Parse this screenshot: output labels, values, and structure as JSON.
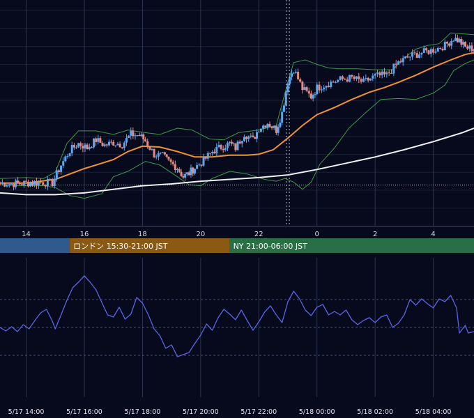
{
  "colors": {
    "background": "#060a1c",
    "grid": "#2b3350",
    "candle_up": "#5aa6f0",
    "candle_down": "#e88a82",
    "sma_short": "#f2922e",
    "sma_long": "#f1f1f1",
    "bollinger": "#3c9a4a",
    "oscillator": "#5a66e6",
    "session_tokyo": "#2f5a8e",
    "session_london": "#8a5a14",
    "session_ny": "#2a6e46"
  },
  "sessions": [
    {
      "label": "",
      "color": "#2f5a8e"
    },
    {
      "label": "ロンドン 15:30-21:00 JST",
      "color": "#8a5a14"
    },
    {
      "label": "NY 21:00-06:00 JST",
      "color": "#2a6e46"
    }
  ],
  "chart_data": [
    {
      "type": "candlestick",
      "x_ticks": [
        "14",
        "16",
        "18",
        "20",
        "22",
        "0",
        "2",
        "4"
      ],
      "x_tick_hours": [
        14,
        16,
        18,
        20,
        22,
        24,
        26,
        28
      ],
      "x_range_hours": [
        13.1,
        29.4
      ],
      "ylim": [
        0,
        100
      ],
      "grid": true,
      "series": [
        {
          "name": "",
          "kind": "candles",
          "color_up": "#5aa6f0",
          "color_down": "#e88a82",
          "close": [
            [
              13.1,
              4.0
            ],
            [
              13.5,
              3.5
            ],
            [
              14.0,
              4.0
            ],
            [
              14.5,
              4.5
            ],
            [
              14.9,
              4.0
            ],
            [
              15.2,
              14.0
            ],
            [
              15.5,
              22.0
            ],
            [
              15.8,
              26.0
            ],
            [
              16.1,
              23.5
            ],
            [
              16.4,
              28.0
            ],
            [
              16.7,
              25.0
            ],
            [
              17.0,
              26.5
            ],
            [
              17.3,
              25.5
            ],
            [
              17.6,
              31.0
            ],
            [
              17.9,
              30.5
            ],
            [
              18.1,
              27.5
            ],
            [
              18.4,
              20.0
            ],
            [
              18.7,
              19.0
            ],
            [
              18.9,
              16.0
            ],
            [
              19.2,
              12.5
            ],
            [
              19.4,
              7.5
            ],
            [
              19.6,
              9.5
            ],
            [
              19.8,
              12.5
            ],
            [
              20.1,
              16.5
            ],
            [
              20.4,
              21.5
            ],
            [
              20.7,
              24.0
            ],
            [
              21.0,
              26.0
            ],
            [
              21.2,
              23.5
            ],
            [
              21.5,
              31.5
            ],
            [
              21.8,
              28.0
            ],
            [
              22.0,
              34.5
            ],
            [
              22.3,
              37.5
            ],
            [
              22.6,
              33.5
            ],
            [
              22.8,
              43.0
            ],
            [
              23.0,
              61.0
            ],
            [
              23.2,
              67.5
            ],
            [
              23.5,
              56.5
            ],
            [
              23.8,
              52.0
            ],
            [
              24.0,
              57.0
            ],
            [
              24.4,
              59.5
            ],
            [
              24.8,
              61.5
            ],
            [
              25.2,
              62.5
            ],
            [
              25.6,
              60.0
            ],
            [
              26.0,
              63.5
            ],
            [
              26.4,
              64.0
            ],
            [
              26.8,
              71.0
            ],
            [
              27.2,
              74.5
            ],
            [
              27.6,
              76.5
            ],
            [
              28.0,
              78.0
            ],
            [
              28.4,
              80.5
            ],
            [
              28.7,
              84.5
            ],
            [
              28.9,
              83.0
            ],
            [
              29.1,
              79.5
            ],
            [
              29.4,
              78.5
            ]
          ]
        },
        {
          "name": "",
          "kind": "sma",
          "color": "#f2922e",
          "points": [
            [
              13.1,
              4.0
            ],
            [
              14.0,
              4.0
            ],
            [
              15.0,
              6.0
            ],
            [
              16.0,
              12.0
            ],
            [
              17.0,
              17.0
            ],
            [
              17.5,
              21.5
            ],
            [
              18.0,
              24.5
            ],
            [
              18.6,
              24.0
            ],
            [
              19.2,
              21.5
            ],
            [
              19.8,
              18.5
            ],
            [
              20.4,
              18.5
            ],
            [
              21.0,
              19.5
            ],
            [
              21.6,
              19.5
            ],
            [
              22.0,
              20.0
            ],
            [
              22.5,
              22.5
            ],
            [
              23.0,
              29.0
            ],
            [
              23.5,
              36.0
            ],
            [
              24.0,
              42.0
            ],
            [
              24.6,
              46.0
            ],
            [
              25.2,
              50.5
            ],
            [
              25.8,
              54.5
            ],
            [
              26.3,
              57.0
            ],
            [
              26.8,
              60.0
            ],
            [
              27.4,
              64.0
            ],
            [
              28.0,
              68.5
            ],
            [
              28.6,
              72.5
            ],
            [
              29.1,
              75.5
            ],
            [
              29.4,
              76.5
            ]
          ]
        },
        {
          "name": "",
          "kind": "sma",
          "color": "#f1f1f1",
          "points": [
            [
              13.1,
              -1.5
            ],
            [
              14.0,
              -2.5
            ],
            [
              15.0,
              -2.5
            ],
            [
              16.0,
              -1.5
            ],
            [
              17.0,
              0.5
            ],
            [
              18.0,
              2.5
            ],
            [
              19.0,
              3.5
            ],
            [
              20.0,
              5.0
            ],
            [
              21.0,
              6.0
            ],
            [
              22.0,
              7.0
            ],
            [
              23.0,
              8.5
            ],
            [
              24.0,
              11.5
            ],
            [
              25.0,
              15.0
            ],
            [
              26.0,
              18.5
            ],
            [
              27.0,
              22.5
            ],
            [
              28.0,
              27.0
            ],
            [
              29.0,
              32.0
            ],
            [
              29.4,
              34.5
            ]
          ]
        },
        {
          "name": "",
          "kind": "band",
          "color": "#3c9a4a",
          "points": [
            [
              13.1,
              6.5
            ],
            [
              14.0,
              7.0
            ],
            [
              14.6,
              6.5
            ],
            [
              15.0,
              10.0
            ],
            [
              15.4,
              26.0
            ],
            [
              15.8,
              33.0
            ],
            [
              16.4,
              33.0
            ],
            [
              17.0,
              31.0
            ],
            [
              17.5,
              33.5
            ],
            [
              18.1,
              32.0
            ],
            [
              18.6,
              31.0
            ],
            [
              19.2,
              34.5
            ],
            [
              19.7,
              33.5
            ],
            [
              20.3,
              28.5
            ],
            [
              20.8,
              28.0
            ],
            [
              21.3,
              32.0
            ],
            [
              22.0,
              33.5
            ],
            [
              22.6,
              36.0
            ],
            [
              23.0,
              60.0
            ],
            [
              23.2,
              71.0
            ],
            [
              23.6,
              72.5
            ],
            [
              24.0,
              70.0
            ],
            [
              24.4,
              68.0
            ],
            [
              24.8,
              67.5
            ],
            [
              25.4,
              67.5
            ],
            [
              26.0,
              67.0
            ],
            [
              26.6,
              67.0
            ],
            [
              27.0,
              73.5
            ],
            [
              27.4,
              78.5
            ],
            [
              27.8,
              80.5
            ],
            [
              28.2,
              81.5
            ],
            [
              28.6,
              87.5
            ],
            [
              29.0,
              87.0
            ],
            [
              29.4,
              86.5
            ]
          ]
        },
        {
          "name": "",
          "kind": "band",
          "color": "#3c9a4a",
          "points": [
            [
              13.1,
              3.0
            ],
            [
              14.0,
              2.5
            ],
            [
              14.6,
              2.5
            ],
            [
              15.0,
              1.5
            ],
            [
              15.5,
              -3.0
            ],
            [
              16.0,
              -4.5
            ],
            [
              16.6,
              -2.0
            ],
            [
              17.0,
              7.5
            ],
            [
              17.5,
              10.5
            ],
            [
              18.1,
              16.0
            ],
            [
              18.6,
              14.0
            ],
            [
              19.2,
              7.5
            ],
            [
              19.6,
              3.0
            ],
            [
              20.0,
              2.5
            ],
            [
              20.4,
              6.5
            ],
            [
              21.0,
              10.5
            ],
            [
              21.6,
              9.0
            ],
            [
              22.2,
              6.0
            ],
            [
              22.6,
              5.0
            ],
            [
              22.9,
              6.5
            ],
            [
              23.2,
              4.5
            ],
            [
              23.5,
              0.5
            ],
            [
              23.8,
              4.5
            ],
            [
              24.1,
              14.5
            ],
            [
              24.6,
              23.5
            ],
            [
              25.1,
              34.5
            ],
            [
              25.7,
              43.5
            ],
            [
              26.2,
              50.5
            ],
            [
              26.8,
              51.0
            ],
            [
              27.4,
              50.5
            ],
            [
              28.0,
              54.0
            ],
            [
              28.4,
              58.5
            ],
            [
              28.7,
              66.5
            ],
            [
              29.1,
              70.5
            ],
            [
              29.4,
              72.5
            ]
          ]
        }
      ]
    },
    {
      "type": "line",
      "x_ticks": [
        "5/17 14:00",
        "5/17 16:00",
        "5/17 18:00",
        "5/17 20:00",
        "5/17 22:00",
        "5/18 00:00",
        "5/18 02:00",
        "5/18 04:00"
      ],
      "x_tick_hours": [
        14,
        16,
        18,
        20,
        22,
        24,
        26,
        28
      ],
      "x_range_hours": [
        13.1,
        29.4
      ],
      "ylim": [
        0,
        100
      ],
      "grid": true,
      "series": [
        {
          "name": "",
          "color": "#5a66e6",
          "points": [
            [
              13.1,
              50.0
            ],
            [
              13.3,
              47.5
            ],
            [
              13.5,
              50.5
            ],
            [
              13.7,
              47.0
            ],
            [
              13.9,
              52.0
            ],
            [
              14.1,
              49.0
            ],
            [
              14.3,
              55.0
            ],
            [
              14.5,
              60.5
            ],
            [
              14.7,
              63.0
            ],
            [
              14.9,
              54.5
            ],
            [
              15.0,
              49.0
            ],
            [
              15.2,
              59.0
            ],
            [
              15.4,
              69.5
            ],
            [
              15.6,
              78.5
            ],
            [
              15.8,
              82.5
            ],
            [
              16.0,
              87.0
            ],
            [
              16.2,
              82.5
            ],
            [
              16.4,
              77.0
            ],
            [
              16.6,
              68.0
            ],
            [
              16.8,
              59.0
            ],
            [
              17.0,
              57.5
            ],
            [
              17.2,
              64.5
            ],
            [
              17.4,
              56.0
            ],
            [
              17.6,
              59.5
            ],
            [
              17.8,
              71.5
            ],
            [
              18.0,
              67.5
            ],
            [
              18.2,
              59.0
            ],
            [
              18.4,
              49.0
            ],
            [
              18.6,
              44.0
            ],
            [
              18.8,
              35.0
            ],
            [
              19.0,
              37.5
            ],
            [
              19.2,
              29.0
            ],
            [
              19.4,
              30.5
            ],
            [
              19.6,
              32.0
            ],
            [
              19.8,
              38.5
            ],
            [
              20.0,
              44.5
            ],
            [
              20.2,
              52.5
            ],
            [
              20.4,
              48.0
            ],
            [
              20.6,
              57.0
            ],
            [
              20.8,
              63.0
            ],
            [
              21.0,
              59.5
            ],
            [
              21.2,
              55.5
            ],
            [
              21.4,
              62.5
            ],
            [
              21.6,
              55.0
            ],
            [
              21.8,
              48.0
            ],
            [
              22.0,
              54.0
            ],
            [
              22.2,
              61.0
            ],
            [
              22.4,
              65.5
            ],
            [
              22.6,
              59.0
            ],
            [
              22.8,
              53.5
            ],
            [
              23.0,
              68.5
            ],
            [
              23.2,
              76.0
            ],
            [
              23.4,
              70.5
            ],
            [
              23.6,
              62.5
            ],
            [
              23.8,
              58.5
            ],
            [
              24.0,
              64.5
            ],
            [
              24.2,
              66.5
            ],
            [
              24.4,
              59.0
            ],
            [
              24.6,
              61.5
            ],
            [
              24.8,
              59.0
            ],
            [
              25.0,
              62.5
            ],
            [
              25.2,
              55.5
            ],
            [
              25.4,
              52.0
            ],
            [
              25.6,
              55.0
            ],
            [
              25.8,
              57.0
            ],
            [
              26.0,
              53.5
            ],
            [
              26.2,
              57.5
            ],
            [
              26.4,
              59.0
            ],
            [
              26.6,
              50.0
            ],
            [
              26.8,
              53.0
            ],
            [
              27.0,
              59.0
            ],
            [
              27.2,
              70.0
            ],
            [
              27.4,
              66.0
            ],
            [
              27.6,
              70.5
            ],
            [
              27.8,
              67.0
            ],
            [
              28.0,
              64.0
            ],
            [
              28.2,
              70.5
            ],
            [
              28.4,
              68.5
            ],
            [
              28.6,
              73.0
            ],
            [
              28.8,
              64.0
            ],
            [
              28.9,
              46.0
            ],
            [
              29.1,
              51.5
            ],
            [
              29.2,
              46.0
            ],
            [
              29.4,
              47.0
            ]
          ]
        }
      ]
    }
  ]
}
